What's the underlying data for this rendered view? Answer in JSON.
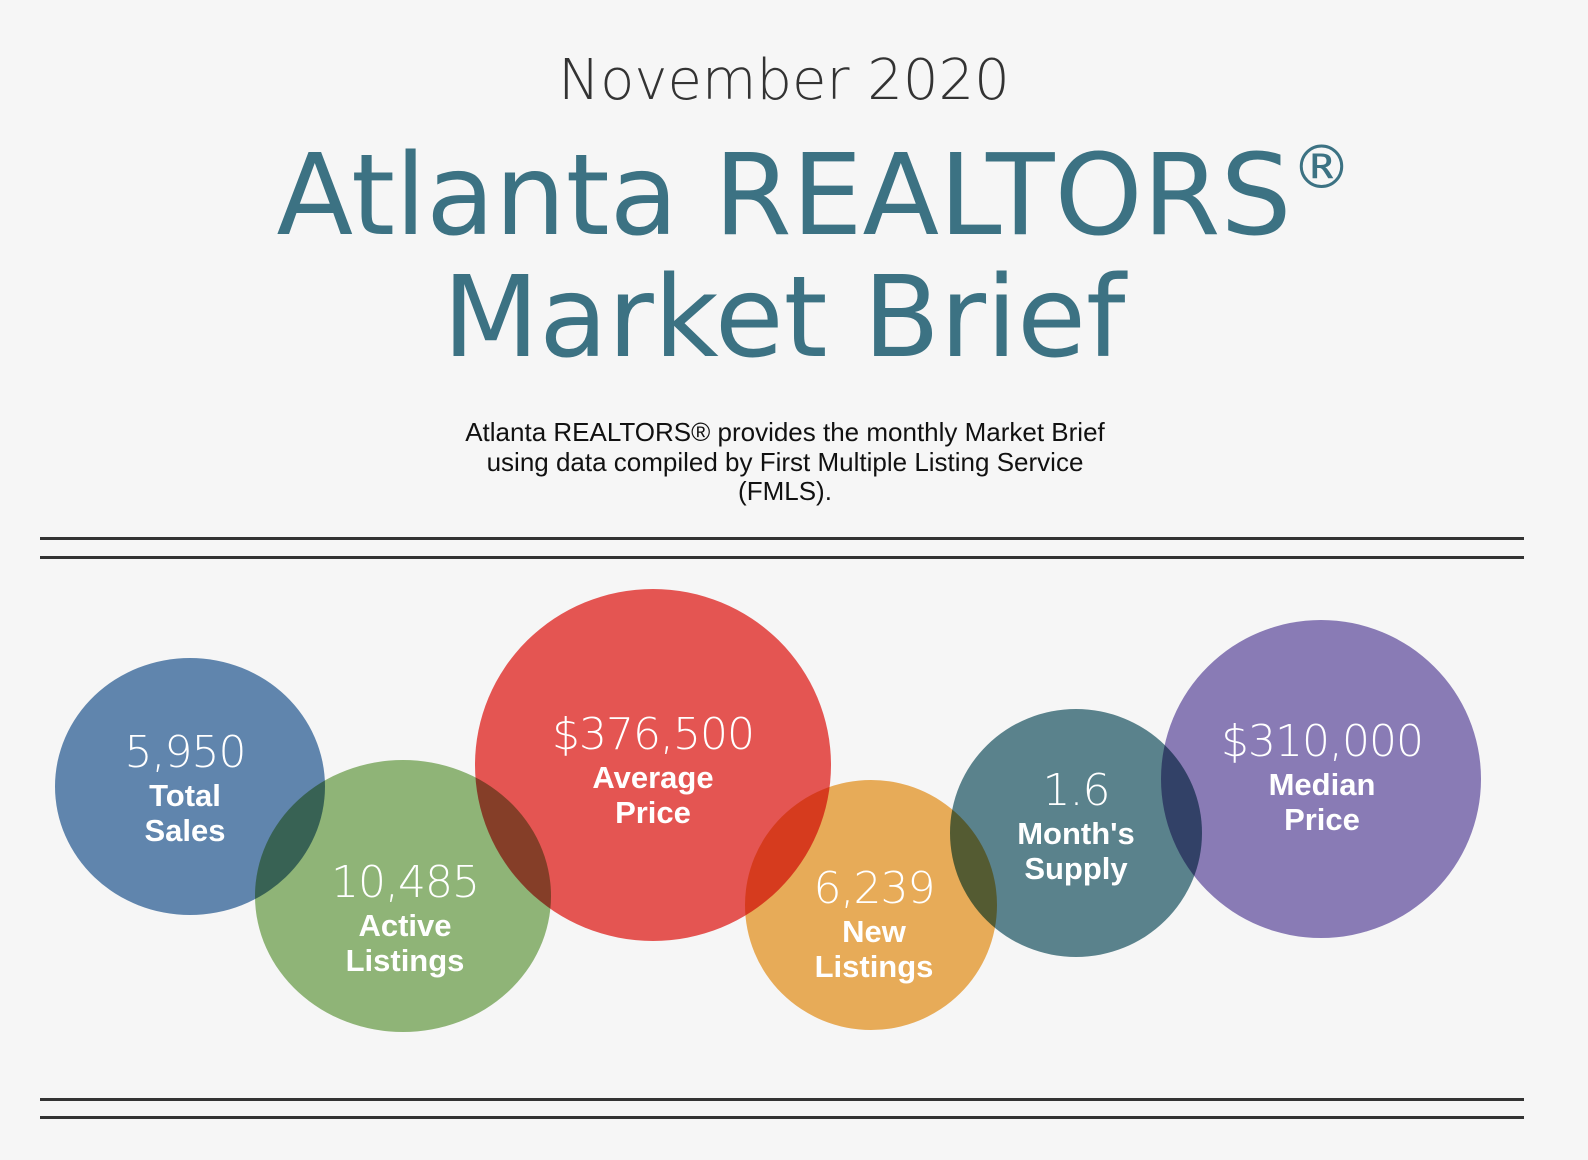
{
  "header": {
    "month": "November 2020",
    "title_line1": "Atlanta REALTORS",
    "title_mark": "®",
    "title_line2": "Market Brief",
    "description": "Atlanta REALTORS® provides the monthly Market Brief using data compiled by First Multiple Listing Service (FMLS)."
  },
  "stats": [
    {
      "value": "5,950",
      "label1": "Total",
      "label2": "Sales",
      "color": "#5a84b0"
    },
    {
      "value": "10,485",
      "label1": "Active",
      "label2": "Listings",
      "color": "#8eb874"
    },
    {
      "value": "$376,500",
      "label1": "Average",
      "label2": "Price",
      "color": "#ec4f4c"
    },
    {
      "value": "6,239",
      "label1": "New",
      "label2": "Listings",
      "color": "#f0ad52"
    },
    {
      "value": "1.6",
      "label1": "Month's",
      "label2": "Supply",
      "color": "#54818b"
    },
    {
      "value": "$310,000",
      "label1": "Median",
      "label2": "Price",
      "color": "#8878b9"
    }
  ]
}
